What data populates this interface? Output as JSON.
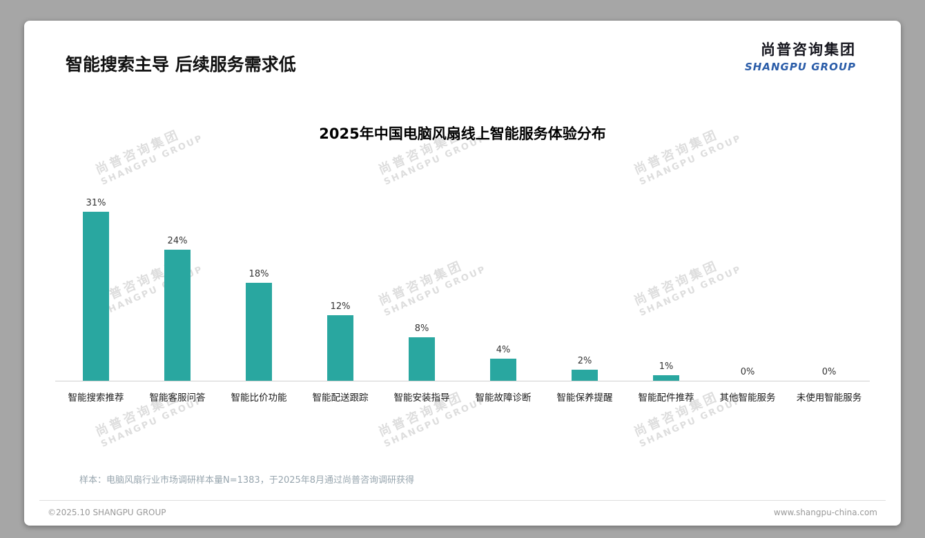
{
  "page": {
    "title": "智能搜索主导 后续服务需求低",
    "logo": {
      "cn": "尚普咨询集团",
      "en": "SHANGPU GROUP"
    },
    "watermark": {
      "cn": "尚普咨询集团",
      "en": "SHANGPU GROUP"
    },
    "footnote": "样本：电脑风扇行业市场调研样本量N=1383，于2025年8月通过尚普咨询调研获得",
    "footer_left": "©2025.10 SHANGPU GROUP",
    "footer_right": "www.shangpu-china.com"
  },
  "chart_data": {
    "type": "bar",
    "title": "2025年中国电脑风扇线上智能服务体验分布",
    "categories": [
      "智能搜索推荐",
      "智能客服问答",
      "智能比价功能",
      "智能配送跟踪",
      "智能安装指导",
      "智能故障诊断",
      "智能保养提醒",
      "智能配件推荐",
      "其他智能服务",
      "未使用智能服务"
    ],
    "values": [
      31,
      24,
      18,
      12,
      8,
      4,
      2,
      1,
      0,
      0
    ],
    "unit": "%",
    "bar_color": "#29a7a0",
    "ylim": [
      0,
      35
    ],
    "grid": false,
    "legend": false,
    "value_labels": true
  }
}
